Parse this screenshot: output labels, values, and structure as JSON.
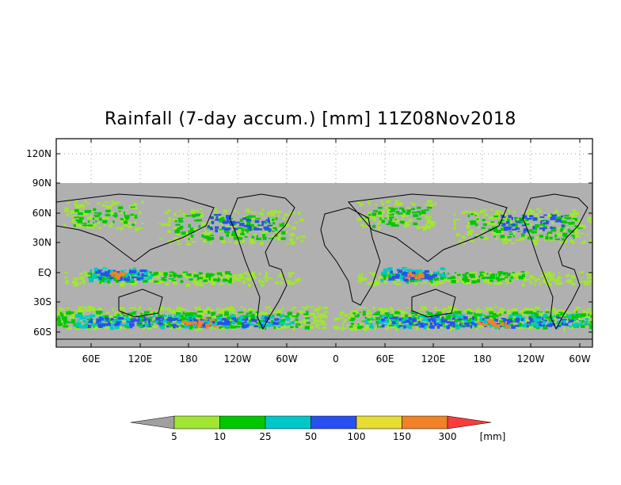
{
  "title": "Rainfall (7-day accum.) [mm] 11Z08Nov2018",
  "lat_labels": [
    "120N",
    "90N",
    "60N",
    "30N",
    "EQ",
    "30S",
    "60S"
  ],
  "lon_labels": [
    "60E",
    "120E",
    "180",
    "120W",
    "60W",
    "0",
    "60E",
    "120E",
    "180",
    "120W",
    "60W"
  ],
  "colorbar": {
    "unit": "[mm]",
    "ticks": [
      "5",
      "10",
      "25",
      "50",
      "100",
      "150",
      "300"
    ],
    "colors": [
      "#a0a0a0",
      "#a0e632",
      "#00c800",
      "#00c8c8",
      "#2850f0",
      "#e6dc32",
      "#f08228",
      "#fa3c3c"
    ]
  },
  "colors": {
    "land": "#a9a9a9",
    "ocean": "#b0b0b0",
    "no_data": "#b4b4b4"
  }
}
